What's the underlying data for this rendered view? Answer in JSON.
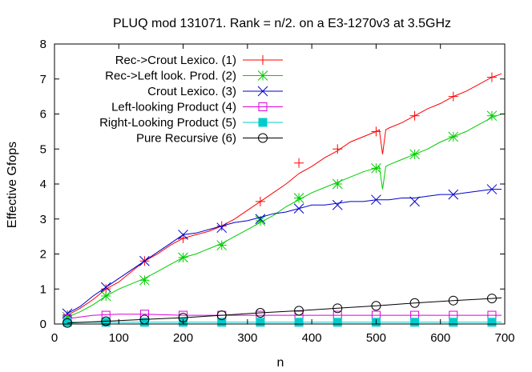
{
  "chart_data": {
    "type": "line",
    "title": "PLUQ mod 131071. Rank = n/2. on a E3-1270v3 at 3.5GHz",
    "xlabel": "n",
    "ylabel": "Effective Gfops",
    "xlim": [
      0,
      700
    ],
    "ylim": [
      0,
      8
    ],
    "xticks": [
      0,
      100,
      200,
      300,
      400,
      500,
      600,
      700
    ],
    "yticks": [
      0,
      1,
      2,
      3,
      4,
      5,
      6,
      7,
      8
    ],
    "grid": false,
    "legend_position": "top-left",
    "series": [
      {
        "name": "Rec->Crout Lexico. (1)",
        "color": "#ff0000",
        "marker": "plus",
        "points": [
          [
            20,
            0.25
          ],
          [
            40,
            0.45
          ],
          [
            60,
            0.7
          ],
          [
            80,
            1.0
          ],
          [
            100,
            1.2
          ],
          [
            120,
            1.5
          ],
          [
            140,
            1.8
          ],
          [
            160,
            2.0
          ],
          [
            180,
            2.25
          ],
          [
            200,
            2.45
          ],
          [
            220,
            2.55
          ],
          [
            240,
            2.65
          ],
          [
            260,
            2.8
          ],
          [
            280,
            3.0
          ],
          [
            300,
            3.25
          ],
          [
            320,
            3.5
          ],
          [
            340,
            3.75
          ],
          [
            360,
            4.0
          ],
          [
            380,
            4.3
          ],
          [
            400,
            4.5
          ],
          [
            420,
            4.75
          ],
          [
            440,
            4.95
          ],
          [
            460,
            5.2
          ],
          [
            480,
            5.35
          ],
          [
            500,
            5.5
          ],
          [
            505,
            5.55
          ],
          [
            510,
            4.85
          ],
          [
            515,
            5.55
          ],
          [
            520,
            5.6
          ],
          [
            540,
            5.75
          ],
          [
            560,
            5.95
          ],
          [
            580,
            6.15
          ],
          [
            600,
            6.3
          ],
          [
            620,
            6.5
          ],
          [
            640,
            6.65
          ],
          [
            660,
            6.85
          ],
          [
            680,
            7.05
          ],
          [
            695,
            7.15
          ]
        ],
        "markers": [
          [
            20,
            0.25
          ],
          [
            80,
            1.0
          ],
          [
            140,
            1.8
          ],
          [
            200,
            2.45
          ],
          [
            260,
            2.8
          ],
          [
            320,
            3.5
          ],
          [
            380,
            4.6
          ],
          [
            440,
            5.0
          ],
          [
            500,
            5.5
          ],
          [
            560,
            5.95
          ],
          [
            620,
            6.5
          ],
          [
            680,
            7.05
          ]
        ]
      },
      {
        "name": "Rec->Left look. Prod. (2)",
        "color": "#00cc00",
        "marker": "star",
        "points": [
          [
            20,
            0.2
          ],
          [
            40,
            0.35
          ],
          [
            60,
            0.55
          ],
          [
            80,
            0.8
          ],
          [
            100,
            1.0
          ],
          [
            120,
            1.15
          ],
          [
            140,
            1.3
          ],
          [
            160,
            1.5
          ],
          [
            180,
            1.7
          ],
          [
            200,
            1.9
          ],
          [
            220,
            2.0
          ],
          [
            240,
            2.15
          ],
          [
            260,
            2.3
          ],
          [
            280,
            2.5
          ],
          [
            300,
            2.7
          ],
          [
            320,
            2.9
          ],
          [
            340,
            3.1
          ],
          [
            360,
            3.35
          ],
          [
            380,
            3.55
          ],
          [
            400,
            3.75
          ],
          [
            420,
            3.9
          ],
          [
            440,
            4.05
          ],
          [
            460,
            4.2
          ],
          [
            480,
            4.35
          ],
          [
            500,
            4.45
          ],
          [
            505,
            4.5
          ],
          [
            510,
            3.85
          ],
          [
            515,
            4.5
          ],
          [
            520,
            4.55
          ],
          [
            540,
            4.7
          ],
          [
            560,
            4.85
          ],
          [
            580,
            5.0
          ],
          [
            600,
            5.2
          ],
          [
            620,
            5.35
          ],
          [
            640,
            5.5
          ],
          [
            660,
            5.7
          ],
          [
            680,
            5.9
          ],
          [
            695,
            6.0
          ]
        ],
        "markers": [
          [
            20,
            0.2
          ],
          [
            80,
            0.8
          ],
          [
            140,
            1.25
          ],
          [
            200,
            1.9
          ],
          [
            260,
            2.25
          ],
          [
            320,
            2.95
          ],
          [
            380,
            3.6
          ],
          [
            440,
            4.0
          ],
          [
            500,
            4.45
          ],
          [
            560,
            4.85
          ],
          [
            620,
            5.35
          ],
          [
            680,
            5.95
          ]
        ]
      },
      {
        "name": "Crout Lexico. (3)",
        "color": "#0000cc",
        "marker": "cross",
        "points": [
          [
            20,
            0.3
          ],
          [
            40,
            0.5
          ],
          [
            60,
            0.8
          ],
          [
            80,
            1.05
          ],
          [
            100,
            1.3
          ],
          [
            120,
            1.55
          ],
          [
            140,
            1.8
          ],
          [
            160,
            2.05
          ],
          [
            180,
            2.3
          ],
          [
            200,
            2.55
          ],
          [
            220,
            2.6
          ],
          [
            240,
            2.7
          ],
          [
            260,
            2.8
          ],
          [
            280,
            2.9
          ],
          [
            300,
            2.95
          ],
          [
            320,
            3.05
          ],
          [
            340,
            3.15
          ],
          [
            360,
            3.2
          ],
          [
            380,
            3.3
          ],
          [
            400,
            3.4
          ],
          [
            420,
            3.4
          ],
          [
            440,
            3.45
          ],
          [
            460,
            3.5
          ],
          [
            480,
            3.5
          ],
          [
            500,
            3.55
          ],
          [
            520,
            3.55
          ],
          [
            540,
            3.6
          ],
          [
            560,
            3.6
          ],
          [
            580,
            3.65
          ],
          [
            600,
            3.7
          ],
          [
            620,
            3.7
          ],
          [
            640,
            3.75
          ],
          [
            660,
            3.8
          ],
          [
            680,
            3.85
          ],
          [
            695,
            3.85
          ]
        ],
        "markers": [
          [
            20,
            0.3
          ],
          [
            80,
            1.05
          ],
          [
            140,
            1.8
          ],
          [
            200,
            2.55
          ],
          [
            260,
            2.75
          ],
          [
            320,
            3.0
          ],
          [
            380,
            3.3
          ],
          [
            440,
            3.4
          ],
          [
            500,
            3.55
          ],
          [
            560,
            3.5
          ],
          [
            620,
            3.7
          ],
          [
            680,
            3.85
          ]
        ]
      },
      {
        "name": "Left-looking Product (4)",
        "color": "#dd00dd",
        "marker": "open-square",
        "points": [
          [
            20,
            0.15
          ],
          [
            60,
            0.25
          ],
          [
            100,
            0.28
          ],
          [
            140,
            0.28
          ],
          [
            200,
            0.25
          ],
          [
            260,
            0.25
          ],
          [
            320,
            0.25
          ],
          [
            380,
            0.25
          ],
          [
            440,
            0.25
          ],
          [
            500,
            0.25
          ],
          [
            560,
            0.25
          ],
          [
            620,
            0.25
          ],
          [
            680,
            0.25
          ],
          [
            695,
            0.25
          ]
        ],
        "markers": [
          [
            20,
            0.15
          ],
          [
            80,
            0.25
          ],
          [
            140,
            0.28
          ],
          [
            200,
            0.25
          ],
          [
            260,
            0.25
          ],
          [
            320,
            0.25
          ],
          [
            380,
            0.25
          ],
          [
            440,
            0.25
          ],
          [
            500,
            0.25
          ],
          [
            560,
            0.25
          ],
          [
            620,
            0.25
          ],
          [
            680,
            0.25
          ]
        ]
      },
      {
        "name": "Right-Looking Product (5)",
        "color": "#00cccc",
        "marker": "filled-square",
        "points": [
          [
            20,
            0.05
          ],
          [
            80,
            0.05
          ],
          [
            140,
            0.05
          ],
          [
            200,
            0.05
          ],
          [
            260,
            0.05
          ],
          [
            320,
            0.05
          ],
          [
            380,
            0.05
          ],
          [
            440,
            0.05
          ],
          [
            500,
            0.05
          ],
          [
            560,
            0.05
          ],
          [
            620,
            0.05
          ],
          [
            680,
            0.05
          ],
          [
            695,
            0.05
          ]
        ],
        "markers": [
          [
            20,
            0.05
          ],
          [
            80,
            0.05
          ],
          [
            140,
            0.05
          ],
          [
            200,
            0.05
          ],
          [
            260,
            0.05
          ],
          [
            320,
            0.05
          ],
          [
            380,
            0.05
          ],
          [
            440,
            0.05
          ],
          [
            500,
            0.05
          ],
          [
            560,
            0.05
          ],
          [
            620,
            0.05
          ],
          [
            680,
            0.05
          ]
        ]
      },
      {
        "name": "Pure Recursive (6)",
        "color": "#000000",
        "marker": "open-circle",
        "points": [
          [
            20,
            0.03
          ],
          [
            80,
            0.08
          ],
          [
            140,
            0.13
          ],
          [
            200,
            0.18
          ],
          [
            260,
            0.25
          ],
          [
            320,
            0.32
          ],
          [
            380,
            0.38
          ],
          [
            440,
            0.45
          ],
          [
            500,
            0.52
          ],
          [
            560,
            0.6
          ],
          [
            620,
            0.67
          ],
          [
            680,
            0.73
          ],
          [
            695,
            0.75
          ]
        ],
        "markers": [
          [
            20,
            0.03
          ],
          [
            80,
            0.08
          ],
          [
            140,
            0.13
          ],
          [
            200,
            0.18
          ],
          [
            260,
            0.25
          ],
          [
            320,
            0.32
          ],
          [
            380,
            0.38
          ],
          [
            440,
            0.45
          ],
          [
            500,
            0.52
          ],
          [
            560,
            0.6
          ],
          [
            620,
            0.67
          ],
          [
            680,
            0.73
          ]
        ]
      }
    ]
  }
}
